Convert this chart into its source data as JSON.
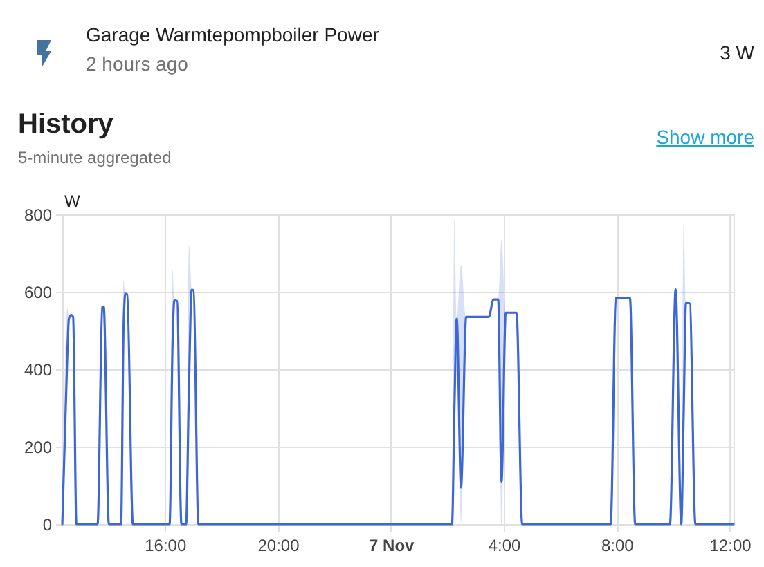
{
  "chart_data": {
    "type": "line",
    "title": "History",
    "subtitle": "5-minute aggregated",
    "annotations": [
      "Garage Warmtepompboiler Power",
      "2 hours ago",
      "3 W",
      "Show more"
    ],
    "ylabel": "W",
    "x": [
      "--11-06T12:22",
      "--11-06T12:33",
      "--11-06T12:36",
      "--11-06T12:41",
      "--11-06T12:45",
      "--11-06T12:52",
      "--11-06T13:37",
      "--11-06T13:47",
      "--11-06T13:50",
      "--11-06T14:01",
      "--11-06T14:27",
      "--11-06T14:32",
      "--11-06T14:36",
      "--11-06T14:40",
      "--11-06T14:52",
      "--11-06T16:10",
      "--11-06T16:16",
      "--11-06T16:20",
      "--11-06T16:26",
      "--11-06T16:35",
      "--11-06T16:45",
      "--11-06T16:51",
      "--11-06T16:57",
      "--11-06T17:01",
      "--11-06T17:11",
      "--11-07T02:10",
      "--11-07T02:15",
      "--11-07T02:20",
      "--11-07T02:29",
      "--11-07T02:40",
      "--11-07T03:28",
      "--11-07T03:38",
      "--11-07T03:48",
      "--11-07T03:55",
      "--11-07T04:04",
      "--11-07T04:27",
      "--11-07T04:39",
      "--11-07T07:47",
      "--11-07T07:58",
      "--11-07T08:28",
      "--11-07T08:39",
      "--11-07T09:53",
      "--11-07T10:05",
      "--11-07T10:17",
      "--11-07T10:22",
      "--11-07T10:27",
      "--11-07T10:35",
      "--11-07T10:47",
      "--11-07T12:08"
    ],
    "series": [
      {
        "color": "#3d66d6",
        "values": [
          0,
          450,
          530,
          540,
          535,
          0,
          0,
          560,
          562,
          0,
          0,
          500,
          595,
          593,
          0,
          0,
          450,
          578,
          576,
          0,
          0,
          350,
          605,
          603,
          0,
          0,
          300,
          530,
          95,
          535,
          535,
          580,
          580,
          110,
          546,
          546,
          0,
          0,
          584,
          584,
          0,
          0,
          606,
          0,
          280,
          571,
          570,
          0,
          0
        ],
        "lower": [
          0,
          450,
          530,
          540,
          535,
          0,
          0,
          560,
          562,
          0,
          0,
          500,
          595,
          593,
          0,
          0,
          450,
          578,
          576,
          0,
          0,
          350,
          605,
          603,
          0,
          0,
          300,
          530,
          0,
          535,
          535,
          580,
          580,
          0,
          546,
          546,
          0,
          0,
          584,
          584,
          0,
          0,
          606,
          0,
          280,
          571,
          570,
          0,
          0
        ],
        "upper": [
          0,
          560,
          530,
          540,
          535,
          0,
          0,
          560,
          562,
          0,
          0,
          630,
          595,
          593,
          0,
          0,
          660,
          578,
          576,
          0,
          0,
          720,
          605,
          603,
          0,
          0,
          790,
          530,
          670,
          535,
          535,
          580,
          580,
          735,
          546,
          546,
          0,
          0,
          584,
          584,
          0,
          0,
          606,
          0,
          776,
          571,
          570,
          0,
          0
        ]
      }
    ],
    "xlim": [
      "--11-06T12:22",
      "--11-07T12:08"
    ],
    "xticks": [
      {
        "value": "--11-06T16:00",
        "label": "16:00"
      },
      {
        "value": "--11-06T20:00",
        "label": "20:00"
      },
      {
        "value": "--11-07T00:00",
        "label": "7 Nov"
      },
      {
        "value": "--11-07T04:00",
        "label": "4:00"
      },
      {
        "value": "--11-07T08:00",
        "label": "8:00"
      },
      {
        "value": "--11-07T12:00",
        "label": "12:00"
      }
    ],
    "ylim": [
      0,
      800
    ],
    "yticks": [
      0,
      200,
      400,
      600,
      800
    ],
    "grid": true
  }
}
